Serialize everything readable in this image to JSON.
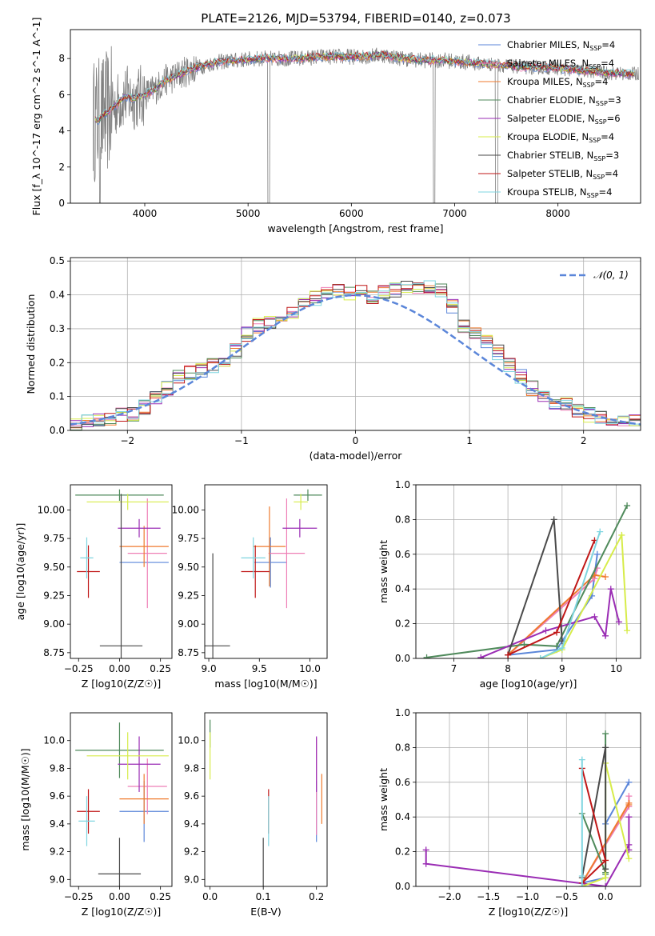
{
  "figure": {
    "title": "PLATE=2126, MJD=53794, FIBERID=0140, z=0.073"
  },
  "models": [
    {
      "name": "Chabrier MILES",
      "nssp": "4",
      "color": "#5b86d9"
    },
    {
      "name": "Salpeter MILES",
      "nssp": "4",
      "color": "#ee7fb6"
    },
    {
      "name": "Kroupa MILES",
      "nssp": "4",
      "color": "#ef7a2e"
    },
    {
      "name": "Chabrier ELODIE",
      "nssp": "3",
      "color": "#4f8a5b"
    },
    {
      "name": "Salpeter ELODIE",
      "nssp": "6",
      "color": "#9a2cb4"
    },
    {
      "name": "Kroupa ELODIE",
      "nssp": "4",
      "color": "#d7ec4a"
    },
    {
      "name": "Chabrier STELIB",
      "nssp": "3",
      "color": "#4a4a4a"
    },
    {
      "name": "Salpeter STELIB",
      "nssp": "4",
      "color": "#c01717"
    },
    {
      "name": "Kroupa STELIB",
      "nssp": "4",
      "color": "#7fd5e0"
    }
  ],
  "chart_data": [
    {
      "id": "spectrum",
      "type": "line",
      "xlabel": "wavelength [Angstrom, rest frame]",
      "ylabel": "Flux [f_λ 10^-17 erg cm^-2 s^-1 A^-1]",
      "xlim": [
        3280,
        8800
      ],
      "ylim": [
        0,
        9.6
      ],
      "xticks": [
        4000,
        5000,
        6000,
        7000,
        8000
      ],
      "yticks": [
        0,
        2,
        4,
        6,
        8
      ],
      "grid": false,
      "legend": "right",
      "data_color": "#808080",
      "continuum": [
        [
          3550,
          4.6
        ],
        [
          3600,
          4.9
        ],
        [
          3700,
          5.3
        ],
        [
          3800,
          5.9
        ],
        [
          3900,
          5.8
        ],
        [
          4000,
          6.0
        ],
        [
          4100,
          6.3
        ],
        [
          4200,
          6.8
        ],
        [
          4300,
          7.0
        ],
        [
          4400,
          7.3
        ],
        [
          4500,
          7.5
        ],
        [
          4700,
          7.8
        ],
        [
          4900,
          7.9
        ],
        [
          5100,
          8.0
        ],
        [
          5300,
          8.0
        ],
        [
          5500,
          8.0
        ],
        [
          5700,
          8.1
        ],
        [
          5900,
          8.1
        ],
        [
          6100,
          8.1
        ],
        [
          6300,
          8.2
        ],
        [
          6500,
          8.0
        ],
        [
          6700,
          7.9
        ],
        [
          6900,
          7.9
        ],
        [
          7100,
          7.8
        ],
        [
          7300,
          7.7
        ],
        [
          7500,
          7.6
        ],
        [
          7700,
          7.5
        ],
        [
          7900,
          7.5
        ],
        [
          8100,
          7.4
        ],
        [
          8300,
          7.3
        ],
        [
          8500,
          7.2
        ],
        [
          8700,
          7.15
        ]
      ]
    },
    {
      "id": "residual-hist",
      "type": "line",
      "xlabel": "(data-model)/error",
      "ylabel": "Normed distribution",
      "xlim": [
        -2.5,
        2.5
      ],
      "ylim": [
        0,
        0.51
      ],
      "xticks": [
        -2,
        -1,
        0,
        1,
        2
      ],
      "yticks": [
        0.0,
        0.1,
        0.2,
        0.3,
        0.4,
        0.5
      ],
      "grid": true,
      "legend": "top-right",
      "gaussian_label": "𝒩(0, 1)",
      "gaussian_color": "#5b86d9",
      "bin_centers": [
        -2.45,
        -2.35,
        -2.25,
        -2.15,
        -2.05,
        -1.95,
        -1.85,
        -1.75,
        -1.65,
        -1.55,
        -1.45,
        -1.35,
        -1.25,
        -1.15,
        -1.05,
        -0.95,
        -0.85,
        -0.75,
        -0.65,
        -0.55,
        -0.45,
        -0.35,
        -0.25,
        -0.15,
        -0.05,
        0.05,
        0.15,
        0.25,
        0.35,
        0.45,
        0.55,
        0.65,
        0.75,
        0.85,
        0.95,
        1.05,
        1.15,
        1.25,
        1.35,
        1.45,
        1.55,
        1.65,
        1.75,
        1.85,
        1.95,
        2.05,
        2.15,
        2.25,
        2.35,
        2.45
      ],
      "base_hist": [
        0.02,
        0.025,
        0.03,
        0.038,
        0.045,
        0.05,
        0.07,
        0.095,
        0.125,
        0.16,
        0.17,
        0.175,
        0.19,
        0.21,
        0.235,
        0.285,
        0.31,
        0.315,
        0.33,
        0.35,
        0.385,
        0.39,
        0.405,
        0.41,
        0.405,
        0.41,
        0.395,
        0.41,
        0.415,
        0.42,
        0.415,
        0.42,
        0.41,
        0.365,
        0.31,
        0.29,
        0.265,
        0.23,
        0.195,
        0.16,
        0.125,
        0.1,
        0.085,
        0.075,
        0.06,
        0.045,
        0.035,
        0.03,
        0.027,
        0.025
      ]
    },
    {
      "id": "age-vs-Z",
      "type": "scatter",
      "xlabel": "Z [log10(Z/Z☉)]",
      "ylabel": "age  [log10(age/yr)]",
      "xlim": [
        -0.3,
        0.32
      ],
      "ylim": [
        8.7,
        10.22
      ],
      "xticks": [
        -0.25,
        0.0,
        0.25
      ],
      "yticks": [
        8.75,
        9.0,
        9.25,
        9.5,
        9.75,
        10.0
      ],
      "points": [
        {
          "m": 0,
          "x": 0.15,
          "y": 9.54,
          "xe": 0.15,
          "ye": 0.0
        },
        {
          "m": 1,
          "x": 0.17,
          "y": 9.62,
          "xe": 0.12,
          "ye": 0.48
        },
        {
          "m": 2,
          "x": 0.15,
          "y": 9.68,
          "xe": 0.15,
          "ye": 0.18
        },
        {
          "m": 3,
          "x": 0.0,
          "y": 10.13,
          "xe": 0.27,
          "ye": 0.05
        },
        {
          "m": 4,
          "x": 0.12,
          "y": 9.84,
          "xe": 0.13,
          "ye": 0.08
        },
        {
          "m": 5,
          "x": 0.05,
          "y": 10.07,
          "xe": 0.25,
          "ye": 0.07
        },
        {
          "m": 6,
          "x": 0.01,
          "y": 8.81,
          "xe": 0.13,
          "ye": 1.33
        },
        {
          "m": 7,
          "x": -0.19,
          "y": 9.46,
          "xe": 0.07,
          "ye": 0.23
        },
        {
          "m": 8,
          "x": -0.2,
          "y": 9.58,
          "xe": 0.04,
          "ye": 0.18
        }
      ]
    },
    {
      "id": "age-vs-mass",
      "type": "scatter",
      "xlabel": "mass [log10(M/M☉)]",
      "ylabel": "",
      "xlim": [
        8.96,
        10.17
      ],
      "ylim": [
        8.7,
        10.22
      ],
      "xticks": [
        9.0,
        9.5,
        10.0
      ],
      "yticks": [
        8.75,
        9.0,
        9.25,
        9.5,
        9.75,
        10.0
      ],
      "points": [
        {
          "m": 0,
          "x": 9.61,
          "y": 9.54,
          "xe": 0.16,
          "ye": 0.22
        },
        {
          "m": 1,
          "x": 9.77,
          "y": 9.62,
          "xe": 0.18,
          "ye": 0.48
        },
        {
          "m": 2,
          "x": 9.6,
          "y": 9.68,
          "xe": 0.16,
          "ye": 0.35
        },
        {
          "m": 3,
          "x": 9.98,
          "y": 10.13,
          "xe": 0.14,
          "ye": 0.05
        },
        {
          "m": 4,
          "x": 9.9,
          "y": 9.84,
          "xe": 0.17,
          "ye": 0.08
        },
        {
          "m": 5,
          "x": 9.91,
          "y": 10.07,
          "xe": 0.07,
          "ye": 0.07
        },
        {
          "m": 6,
          "x": 9.04,
          "y": 8.81,
          "xe": 0.17,
          "ye": 0.81
        },
        {
          "m": 7,
          "x": 9.46,
          "y": 9.46,
          "xe": 0.14,
          "ye": 0.23
        },
        {
          "m": 8,
          "x": 9.44,
          "y": 9.58,
          "xe": 0.12,
          "ye": 0.18
        }
      ]
    },
    {
      "id": "weight-vs-age",
      "type": "line",
      "xlabel": "age  [log10(age/yr)]",
      "ylabel": "mass weight",
      "xlim": [
        6.3,
        10.45
      ],
      "ylim": [
        0,
        1
      ],
      "xticks": [
        7,
        8,
        9,
        10
      ],
      "yticks": [
        0.0,
        0.2,
        0.4,
        0.6,
        0.8,
        1.0
      ],
      "grid": true,
      "series": [
        {
          "m": 0,
          "x": [
            8.0,
            8.9,
            9.55,
            9.65
          ],
          "y": [
            0.02,
            0.05,
            0.36,
            0.6
          ]
        },
        {
          "m": 1,
          "x": [
            8.0,
            9.6,
            9.65
          ],
          "y": [
            0.02,
            0.46,
            0.52
          ]
        },
        {
          "m": 2,
          "x": [
            8.0,
            9.6,
            9.8
          ],
          "y": [
            0.02,
            0.48,
            0.47
          ]
        },
        {
          "m": 3,
          "x": [
            6.5,
            8.3,
            8.9,
            10.2
          ],
          "y": [
            0.005,
            0.08,
            0.07,
            0.88
          ]
        },
        {
          "m": 4,
          "x": [
            7.5,
            8.7,
            9.6,
            9.8,
            9.9,
            10.05
          ],
          "y": [
            0.005,
            0.16,
            0.24,
            0.13,
            0.4,
            0.21
          ]
        },
        {
          "m": 5,
          "x": [
            8.6,
            9.0,
            10.1,
            10.2
          ],
          "y": [
            0.0,
            0.05,
            0.71,
            0.16
          ]
        },
        {
          "m": 6,
          "x": [
            8.0,
            8.85,
            9.0
          ],
          "y": [
            0.02,
            0.8,
            0.1
          ]
        },
        {
          "m": 7,
          "x": [
            8.0,
            8.9,
            9.6
          ],
          "y": [
            0.02,
            0.15,
            0.68
          ]
        },
        {
          "m": 8,
          "x": [
            8.6,
            9.0,
            9.7
          ],
          "y": [
            0.0,
            0.06,
            0.73
          ]
        }
      ]
    },
    {
      "id": "mass-vs-Z",
      "type": "scatter",
      "xlabel": "Z [log10(Z/Z☉)]",
      "ylabel": "mass [log10(M/M☉)]",
      "xlim": [
        -0.3,
        0.32
      ],
      "ylim": [
        8.95,
        10.2
      ],
      "xticks": [
        -0.25,
        0.0,
        0.25
      ],
      "yticks": [
        9.0,
        9.2,
        9.4,
        9.6,
        9.8,
        10.0
      ],
      "points": [
        {
          "m": 0,
          "x": 0.15,
          "y": 9.49,
          "xe": 0.15,
          "ye": 0.22
        },
        {
          "m": 1,
          "x": 0.17,
          "y": 9.67,
          "xe": 0.12,
          "ye": 0.2
        },
        {
          "m": 2,
          "x": 0.15,
          "y": 9.58,
          "xe": 0.15,
          "ye": 0.18
        },
        {
          "m": 3,
          "x": 0.0,
          "y": 9.93,
          "xe": 0.27,
          "ye": 0.2
        },
        {
          "m": 4,
          "x": 0.12,
          "y": 9.83,
          "xe": 0.13,
          "ye": 0.2
        },
        {
          "m": 5,
          "x": 0.05,
          "y": 9.89,
          "xe": 0.25,
          "ye": 0.17
        },
        {
          "m": 6,
          "x": 0.0,
          "y": 9.04,
          "xe": 0.13,
          "ye": 0.26
        },
        {
          "m": 7,
          "x": -0.19,
          "y": 9.49,
          "xe": 0.07,
          "ye": 0.16
        },
        {
          "m": 8,
          "x": -0.2,
          "y": 9.42,
          "xe": 0.05,
          "ye": 0.18
        }
      ]
    },
    {
      "id": "mass-vs-ebv",
      "type": "scatter",
      "xlabel": "E(B-V)",
      "ylabel": "",
      "xlim": [
        -0.01,
        0.22
      ],
      "ylim": [
        8.95,
        10.2
      ],
      "xticks": [
        0.0,
        0.1,
        0.2
      ],
      "yticks": [
        9.0,
        9.2,
        9.4,
        9.6,
        9.8,
        10.0
      ],
      "points": [
        {
          "m": 0,
          "x": 0.2,
          "y": 9.49,
          "xe": 0,
          "ye": 0.22
        },
        {
          "m": 1,
          "x": 0.2,
          "y": 9.67,
          "xe": 0,
          "ye": 0.35
        },
        {
          "m": 2,
          "x": 0.21,
          "y": 9.58,
          "xe": 0,
          "ye": 0.18
        },
        {
          "m": 3,
          "x": 0.0,
          "y": 10.05,
          "xe": 0,
          "ye": 0.1
        },
        {
          "m": 4,
          "x": 0.2,
          "y": 9.83,
          "xe": 0,
          "ye": 0.2
        },
        {
          "m": 5,
          "x": 0.0,
          "y": 9.89,
          "xe": 0,
          "ye": 0.17
        },
        {
          "m": 6,
          "x": 0.1,
          "y": 9.04,
          "xe": 0,
          "ye": 0.26
        },
        {
          "m": 7,
          "x": 0.11,
          "y": 9.49,
          "xe": 0,
          "ye": 0.16
        },
        {
          "m": 8,
          "x": 0.11,
          "y": 9.42,
          "xe": 0,
          "ye": 0.18
        }
      ]
    },
    {
      "id": "weight-vs-Z",
      "type": "line",
      "xlabel": "Z [log10(Z/Z☉)]",
      "ylabel": "mass weight",
      "xlim": [
        -2.43,
        0.45
      ],
      "ylim": [
        0,
        1
      ],
      "xticks": [
        -2.0,
        -1.5,
        -1.0,
        -0.5,
        0.0
      ],
      "yticks": [
        0.0,
        0.2,
        0.4,
        0.6,
        0.8,
        1.0
      ],
      "grid": true,
      "series": [
        {
          "m": 0,
          "x": [
            -0.3,
            0.0,
            0.0,
            0.3
          ],
          "y": [
            0.02,
            0.05,
            0.36,
            0.6
          ]
        },
        {
          "m": 1,
          "x": [
            -0.3,
            0.3,
            0.3
          ],
          "y": [
            0.02,
            0.46,
            0.52
          ]
        },
        {
          "m": 2,
          "x": [
            -0.3,
            0.3,
            0.3
          ],
          "y": [
            0.02,
            0.48,
            0.47
          ]
        },
        {
          "m": 3,
          "x": [
            -0.3,
            0.0,
            0.0,
            0.0
          ],
          "y": [
            0.42,
            0.08,
            0.07,
            0.88
          ]
        },
        {
          "m": 4,
          "x": [
            -2.3,
            -2.3,
            0.0,
            0.3,
            0.3,
            0.3
          ],
          "y": [
            0.21,
            0.13,
            0.0,
            0.24,
            0.4,
            0.21
          ]
        },
        {
          "m": 5,
          "x": [
            -0.3,
            0.0,
            0.0,
            0.3
          ],
          "y": [
            0.0,
            0.05,
            0.71,
            0.16
          ]
        },
        {
          "m": 6,
          "x": [
            -0.3,
            0.0,
            0.0
          ],
          "y": [
            0.05,
            0.8,
            0.1
          ]
        },
        {
          "m": 7,
          "x": [
            -0.3,
            0.0,
            -0.3
          ],
          "y": [
            0.02,
            0.15,
            0.68
          ]
        },
        {
          "m": 8,
          "x": [
            -0.3,
            -0.3,
            -0.3
          ],
          "y": [
            0.0,
            0.06,
            0.73
          ]
        }
      ]
    }
  ]
}
